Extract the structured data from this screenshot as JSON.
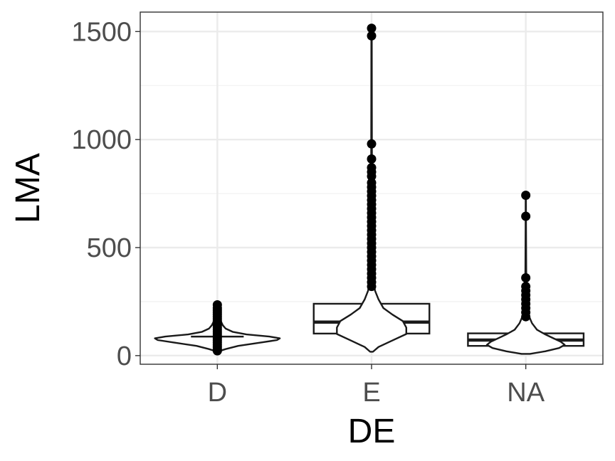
{
  "chart_data": {
    "type": "violin-box",
    "xlabel": "DE",
    "ylabel": "LMA",
    "categories": [
      "D",
      "E",
      "NA"
    ],
    "ylim": [
      -40,
      1590
    ],
    "yticks": [
      0,
      500,
      1000,
      1500
    ],
    "grid": true,
    "groups": [
      {
        "name": "D",
        "box": null,
        "violin": {
          "min": 22,
          "max": 235,
          "widths": [
            [
              22,
              0.04
            ],
            [
              30,
              0.12
            ],
            [
              45,
              0.3
            ],
            [
              60,
              0.62
            ],
            [
              72,
              0.86
            ],
            [
              80,
              0.9
            ],
            [
              88,
              0.75
            ],
            [
              98,
              0.42
            ],
            [
              110,
              0.22
            ],
            [
              125,
              0.12
            ],
            [
              140,
              0.08
            ],
            [
              160,
              0.05
            ],
            [
              185,
              0.03
            ],
            [
              210,
              0.02
            ],
            [
              235,
              0.01
            ]
          ]
        },
        "median_line": {
          "y": 88,
          "half_width": 0.38
        },
        "outliers": [
          22,
          30,
          40,
          50,
          60,
          70,
          80,
          90,
          100,
          110,
          120,
          130,
          140,
          150,
          160,
          170,
          180,
          190,
          200,
          210,
          220,
          235
        ]
      },
      {
        "name": "E",
        "box": {
          "q1": 102,
          "median": 155,
          "q3": 240,
          "whisker_low": 18,
          "whisker_high": 1512
        },
        "violin": {
          "min": 18,
          "max": 1512,
          "widths": [
            [
              18,
              0.02
            ],
            [
              40,
              0.1
            ],
            [
              70,
              0.3
            ],
            [
              100,
              0.5
            ],
            [
              130,
              0.5
            ],
            [
              160,
              0.45
            ],
            [
              190,
              0.3
            ],
            [
              220,
              0.17
            ],
            [
              260,
              0.1
            ],
            [
              300,
              0.05
            ],
            [
              350,
              0.025
            ],
            [
              500,
              0.012
            ],
            [
              800,
              0.006
            ],
            [
              1200,
              0.004
            ],
            [
              1512,
              0.003
            ]
          ]
        },
        "outliers": [
          320,
          340,
          360,
          380,
          400,
          420,
          440,
          460,
          480,
          500,
          520,
          540,
          560,
          580,
          600,
          620,
          640,
          660,
          680,
          700,
          720,
          740,
          760,
          780,
          800,
          830,
          850,
          870,
          910,
          980,
          1480,
          1515
        ]
      },
      {
        "name": "NA",
        "box": {
          "q1": 45,
          "median": 72,
          "q3": 103,
          "whisker_low": 8,
          "whisker_high": 740
        },
        "violin": {
          "min": 8,
          "max": 740,
          "widths": [
            [
              8,
              0.06
            ],
            [
              20,
              0.28
            ],
            [
              35,
              0.48
            ],
            [
              50,
              0.56
            ],
            [
              65,
              0.5
            ],
            [
              80,
              0.4
            ],
            [
              100,
              0.27
            ],
            [
              120,
              0.16
            ],
            [
              150,
              0.09
            ],
            [
              180,
              0.05
            ],
            [
              230,
              0.025
            ],
            [
              300,
              0.012
            ],
            [
              400,
              0.006
            ],
            [
              600,
              0.003
            ],
            [
              740,
              0.002
            ]
          ]
        },
        "outliers": [
          180,
          200,
          220,
          240,
          260,
          280,
          300,
          320,
          360,
          645,
          742
        ]
      }
    ]
  }
}
